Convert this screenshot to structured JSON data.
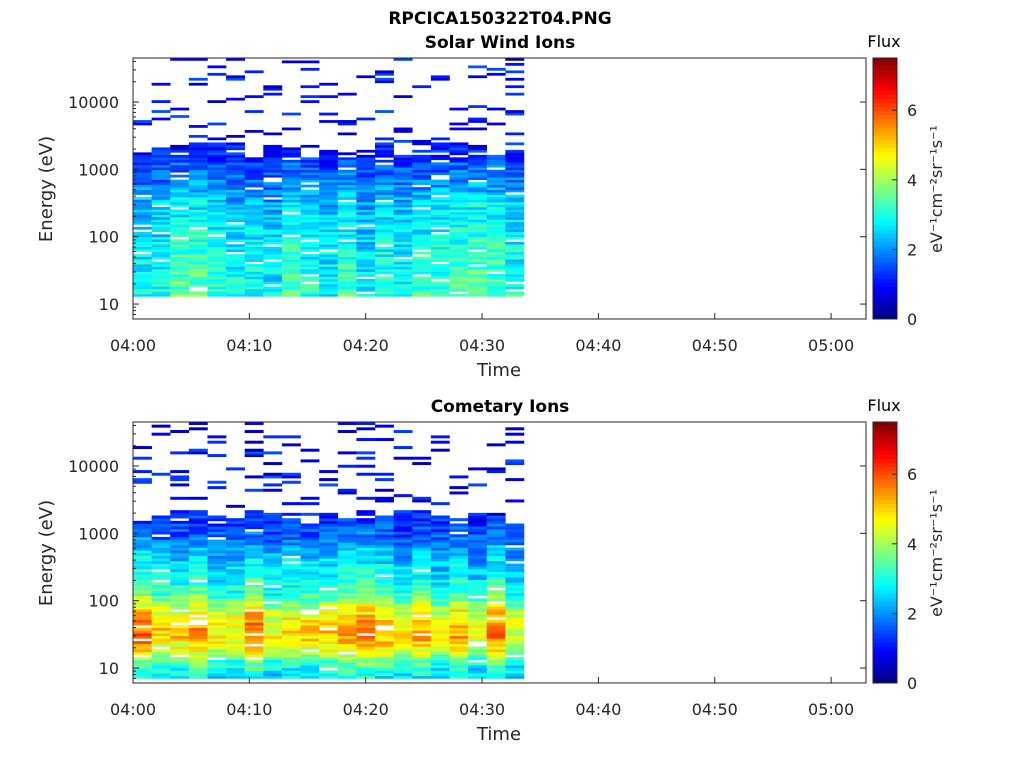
{
  "figure": {
    "title": "RPCICA150322T04.PNG"
  },
  "chart_data": [
    {
      "type": "heatmap",
      "title": "Solar Wind Ions",
      "xlabel": "Time",
      "ylabel": "Energy (eV)",
      "x_ticks": [
        "04:00",
        "04:10",
        "04:20",
        "04:30",
        "04:40",
        "04:50",
        "05:00"
      ],
      "x_range_minutes": [
        0,
        63
      ],
      "y_ticks": [
        "10",
        "100",
        "1000",
        "10000"
      ],
      "y_scale": "log",
      "y_range": [
        6,
        45000
      ],
      "colorbar": {
        "title": "Flux",
        "label": "eV⁻¹cm⁻²sr⁻¹s⁻¹",
        "ticks": [
          "0",
          "2",
          "4",
          "6"
        ],
        "range": [
          0,
          7.5
        ],
        "colormap": "jet"
      },
      "data_extent_minutes": [
        0,
        33.6
      ],
      "cell_width_minutes": 1.6,
      "low_cutoff_eV": 13,
      "profile": {
        "centers": [
          0.85,
          1.1,
          1.5,
          2.0,
          2.5,
          3.0,
          3.4
        ],
        "values": [
          1.8,
          3.2,
          3.0,
          2.8,
          2.4,
          1.6,
          0.9
        ]
      },
      "coverage_top_eV": 2000,
      "seed": 11
    },
    {
      "type": "heatmap",
      "title": "Cometary Ions",
      "xlabel": "Time",
      "ylabel": "Energy (eV)",
      "x_ticks": [
        "04:00",
        "04:10",
        "04:20",
        "04:30",
        "04:40",
        "04:50",
        "05:00"
      ],
      "x_range_minutes": [
        0,
        63
      ],
      "y_ticks": [
        "10",
        "100",
        "1000",
        "10000"
      ],
      "y_scale": "log",
      "y_range": [
        6,
        45000
      ],
      "colorbar": {
        "title": "Flux",
        "label": "eV⁻¹cm⁻²sr⁻¹s⁻¹",
        "ticks": [
          "0",
          "2",
          "4",
          "6"
        ],
        "range": [
          0,
          7.5
        ],
        "colormap": "jet"
      },
      "data_extent_minutes": [
        0,
        33.6
      ],
      "cell_width_minutes": 1.6,
      "low_cutoff_eV": 7,
      "profile": {
        "centers": [
          0.85,
          1.1,
          1.25,
          1.45,
          1.7,
          1.9,
          2.1,
          2.4,
          2.7,
          3.0,
          3.4
        ],
        "values": [
          2.6,
          3.4,
          4.4,
          5.2,
          5.0,
          4.3,
          3.3,
          2.8,
          2.3,
          1.6,
          1.0
        ]
      },
      "coverage_top_eV": 1800,
      "seed": 29
    }
  ]
}
